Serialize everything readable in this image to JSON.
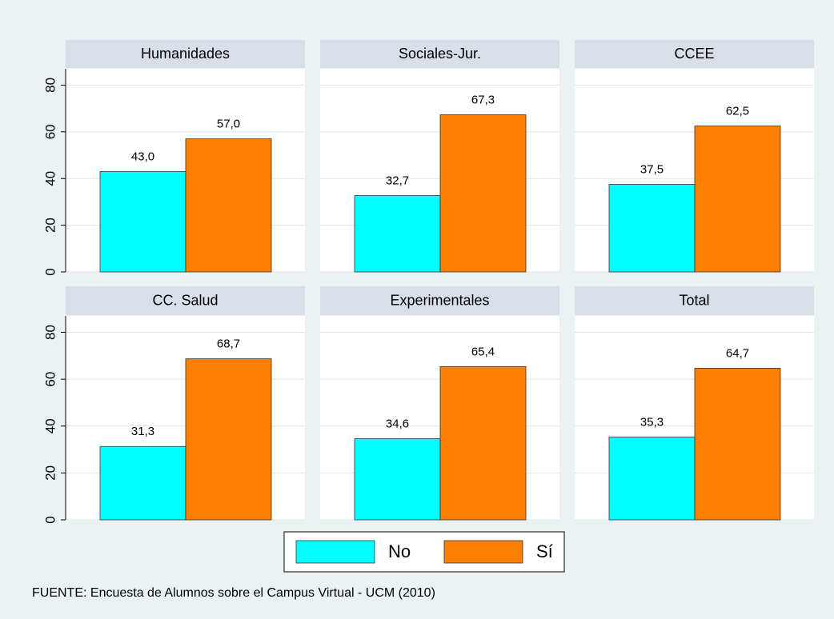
{
  "chart_data": {
    "type": "bar",
    "categories": [
      "Humanidades",
      "Sociales-Jur.",
      "CCEE",
      "CC. Salud",
      "Experimentales",
      "Total"
    ],
    "series": [
      {
        "name": "No",
        "color": "#00ffff",
        "values": [
          43.0,
          32.7,
          37.5,
          31.3,
          34.6,
          35.3
        ],
        "value_labels": [
          "43,0",
          "32,7",
          "37,5",
          "31,3",
          "34,6",
          "35,3"
        ]
      },
      {
        "name": "Sí",
        "color": "#ff7f00",
        "values": [
          57.0,
          67.3,
          62.5,
          68.7,
          65.4,
          64.7
        ],
        "value_labels": [
          "57,0",
          "67,3",
          "62,5",
          "68,7",
          "65,4",
          "64,7"
        ]
      }
    ],
    "ylim": [
      0,
      87
    ],
    "yticks": [
      0,
      20,
      40,
      60,
      80
    ],
    "grid": true,
    "note": "FUENTE: Encuesta de Alumnos sobre el Campus Virtual - UCM (2010)"
  }
}
